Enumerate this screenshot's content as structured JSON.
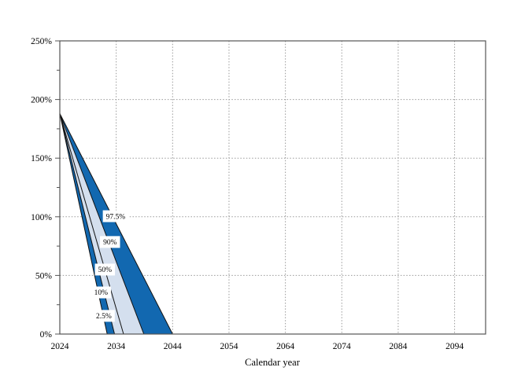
{
  "chart_data": {
    "type": "area",
    "subtype": "percentile-fan",
    "xlabel": "Calendar year",
    "xlim": [
      2024,
      2099.5
    ],
    "ylim_pct": [
      0,
      250
    ],
    "x_ticks": [
      2024,
      2034,
      2044,
      2054,
      2064,
      2074,
      2084,
      2094
    ],
    "y_ticks": [
      {
        "value": 0,
        "label": "0%"
      },
      {
        "value": 50,
        "label": "50%"
      },
      {
        "value": 100,
        "label": "100%"
      },
      {
        "value": 150,
        "label": "150%"
      },
      {
        "value": 200,
        "label": "200%"
      },
      {
        "value": 250,
        "label": "250%"
      }
    ],
    "y_minor_ticks": [
      25,
      75,
      125,
      175,
      225
    ],
    "grid": {
      "horizontal_pct": [
        50,
        100,
        150,
        200
      ],
      "vertical_years": [
        2034,
        2044,
        2054,
        2064,
        2074,
        2084,
        2094
      ],
      "style": "dotted"
    },
    "start_point": {
      "year": 2024,
      "value_pct": 188
    },
    "percentiles": [
      {
        "name": "2.5%",
        "p": 2.5,
        "zero_year": 2032.4
      },
      {
        "name": "10%",
        "p": 10,
        "zero_year": 2033.7
      },
      {
        "name": "50%",
        "p": 50,
        "zero_year": 2035.3
      },
      {
        "name": "90%",
        "p": 90,
        "zero_year": 2038.9
      },
      {
        "name": "97.5%",
        "p": 97.5,
        "zero_year": 2044.0
      }
    ],
    "bands": [
      {
        "from": "2.5%",
        "to": "10%",
        "shade": "dark"
      },
      {
        "from": "10%",
        "to": "90%",
        "shade": "light"
      },
      {
        "from": "90%",
        "to": "97.5%",
        "shade": "dark"
      }
    ],
    "labels": [
      {
        "text": "97.5%",
        "year": 2033.9,
        "value_pct": 100.5
      },
      {
        "text": "90%",
        "year": 2032.9,
        "value_pct": 78.5
      },
      {
        "text": "50%",
        "year": 2032.0,
        "value_pct": 55.0
      },
      {
        "text": "10%",
        "year": 2031.3,
        "value_pct": 35.5
      },
      {
        "text": "2.5%",
        "year": 2031.8,
        "value_pct": 15.5
      }
    ],
    "colors": {
      "dark_blue": "#1268b0",
      "light_blue": "#d4dfee",
      "line": "#111111",
      "grid": "#999999",
      "frame": "#555555",
      "text": "#000000",
      "label_bg": "#ffffff"
    }
  }
}
